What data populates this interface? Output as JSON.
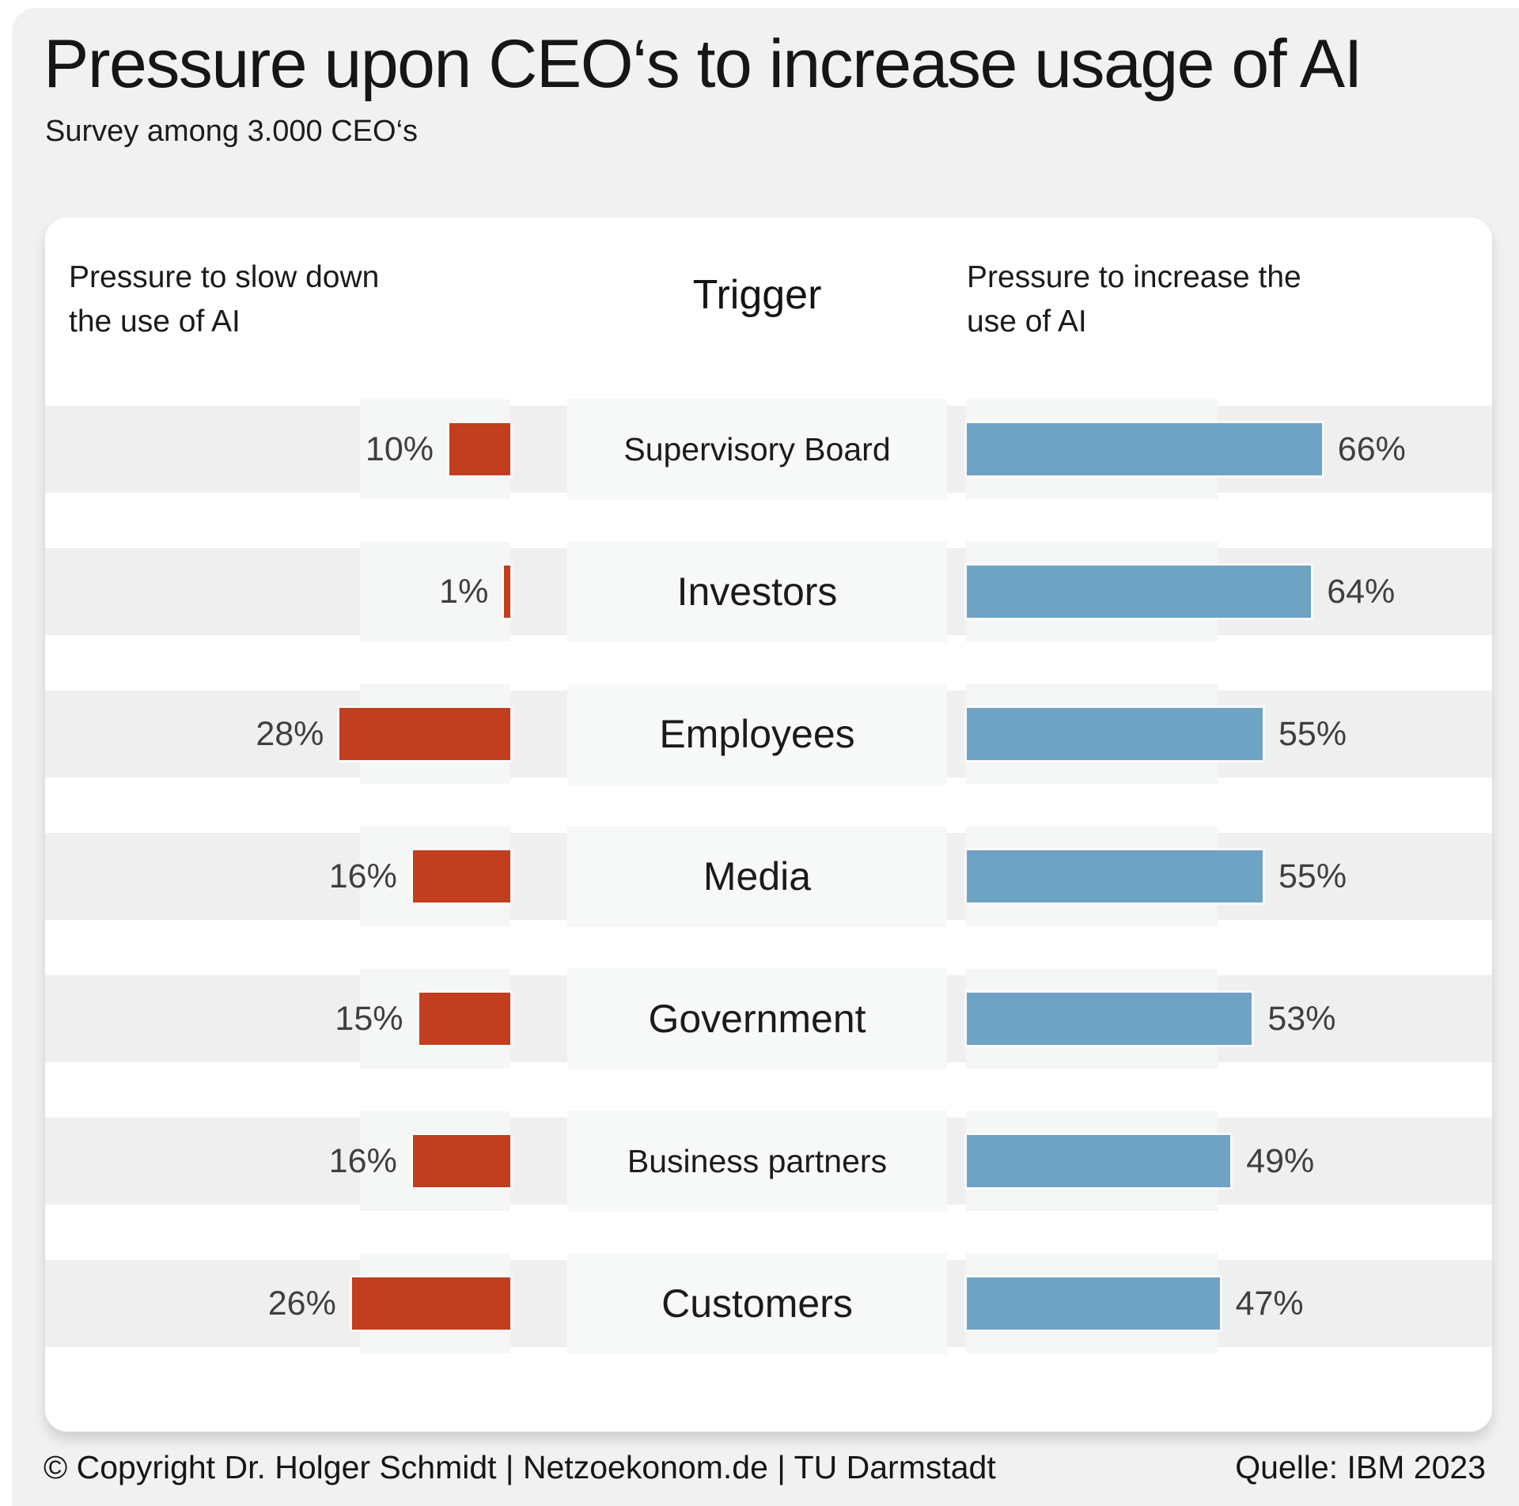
{
  "page": {
    "title": "Pressure upon CEO‘s to increase usage of AI",
    "subtitle": "Survey among 3.000 CEO‘s"
  },
  "table_headers": {
    "left": "Pressure to slow down the use of AI",
    "center": "Trigger",
    "right": "Pressure to increase the use of AI"
  },
  "footer": {
    "left": "© Copyright Dr. Holger Schmidt | Netzoekonom.de | TU Darmstadt",
    "right": "Quelle: IBM 2023"
  },
  "colors": {
    "slow_down_bar": "#c13e1e",
    "increase_bar": "#6fa3c3",
    "row_band": "#efefef",
    "page_background": "#f1f1f1",
    "card_background": "#ffffff"
  },
  "chart_data": {
    "type": "bar",
    "variant": "diverging-horizontal",
    "title": "Pressure upon CEO‘s to increase usage of AI",
    "subtitle": "Survey among 3.000 CEO‘s",
    "categories": [
      "Supervisory Board",
      "Investors",
      "Employees",
      "Media",
      "Government",
      "Business partners",
      "Customers"
    ],
    "series": [
      {
        "name": "Pressure to slow down the use of AI",
        "color": "#c13e1e",
        "direction": "left",
        "values": [
          10,
          1,
          28,
          16,
          15,
          16,
          26
        ]
      },
      {
        "name": "Pressure to increase the use of AI",
        "color": "#6fa3c3",
        "direction": "right",
        "values": [
          66,
          64,
          55,
          55,
          53,
          49,
          47
        ]
      }
    ],
    "value_suffix": "%",
    "value_labels": "outside-end",
    "xlim_left": [
      0,
      30
    ],
    "xlim_right": [
      0,
      70
    ],
    "grid": false,
    "legend_position": "column-headers",
    "source": "Quelle: IBM 2023"
  }
}
